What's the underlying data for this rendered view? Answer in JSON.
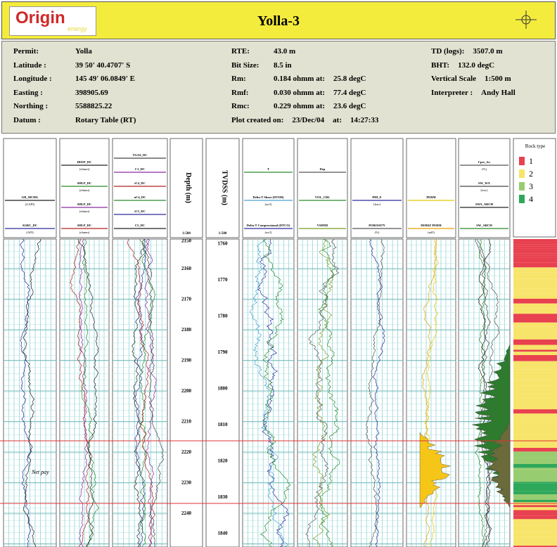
{
  "header": {
    "logo": "Origin",
    "logo_sub": "energy",
    "title": "Yolla-3"
  },
  "info": {
    "columns": [
      [
        [
          "Permit:",
          "Yolla"
        ],
        [
          "Latitude :",
          "39 50' 40.4707' S"
        ],
        [
          "Longitude :",
          "145 49' 06.0849' E"
        ],
        [
          "Easting :",
          "398905.69"
        ],
        [
          "Northing :",
          "5588825.22"
        ],
        [
          "Datum :",
          "Rotary Table (RT)"
        ]
      ],
      [
        [
          "RTE:",
          "43.0 m"
        ],
        [
          "Bit Size:",
          "8.5 in"
        ],
        [
          "Rm:",
          "0.184 ohmm at:",
          "25.8 degC"
        ],
        [
          "Rmf:",
          "0.030 ohmm at:",
          "77.4 degC"
        ],
        [
          "Rmc:",
          "0.229 ohmm at:",
          "23.6 degC"
        ],
        [
          "Plot created on:",
          "23/Dec/04",
          "at:",
          "14:27:33"
        ]
      ],
      [
        [
          "TD (logs):",
          "3507.0 m"
        ],
        [
          "BHT:",
          "132.0 degC"
        ],
        [
          "Vertical Scale",
          "1:500 m"
        ],
        [
          "Interpreter :",
          "Andy Hall"
        ]
      ]
    ]
  },
  "tracks": [
    {
      "curves": [
        {
          "name": "SGRC_DC",
          "unit": "(API)",
          "color": "#2a2a9a"
        },
        {
          "name": "GR_MCHG",
          "unit": "(GAPI)",
          "color": "#222222"
        }
      ]
    },
    {
      "curves": [
        {
          "name": "SHLP_DC",
          "unit": "(ohmm)",
          "color": "#b02020"
        },
        {
          "name": "SHLP_DC",
          "unit": "(ohmm)",
          "color": "#8a2aa0"
        },
        {
          "name": "SHLP_DC",
          "unit": "(ohmm)",
          "color": "#2a8a2a"
        },
        {
          "name": "DEEP_DC",
          "unit": "(ohmm)",
          "color": "#222222"
        }
      ]
    },
    {
      "curves": [
        {
          "name": "C5_DC",
          "unit": "",
          "color": "#222222"
        },
        {
          "name": "iC5_DC",
          "unit": "",
          "color": "#2a2a9a"
        },
        {
          "name": "nC4_DC",
          "unit": "",
          "color": "#2a8a2a"
        },
        {
          "name": "iC4_DC",
          "unit": "",
          "color": "#b02020"
        },
        {
          "name": "C1_DC",
          "unit": "",
          "color": "#8a2aa0"
        },
        {
          "name": "TGAS_DC",
          "unit": "",
          "color": "#444444"
        }
      ]
    },
    {
      "curves": [
        {
          "name": "Delta-T Compressional (DTCO)",
          "unit": "(us/f)",
          "color": "#2a2a9a"
        },
        {
          "name": "Delta-T Shear (DTSM)",
          "unit": "(us/f)",
          "color": "#4aa0d0"
        },
        {
          "name": "T",
          "unit": "",
          "color": "#2a8a2a"
        }
      ]
    },
    {
      "curves": [
        {
          "name": "VSHND",
          "unit": "",
          "color": "#7a9a20"
        },
        {
          "name": "VOL_CRL",
          "unit": "",
          "color": "#2a8a2a"
        },
        {
          "name": "Dep",
          "unit": "",
          "color": "#555555"
        }
      ]
    },
    {
      "curves": [
        {
          "name": "POROSITY",
          "unit": "(%)",
          "color": "#555555"
        },
        {
          "name": "PHI_E",
          "unit": "(frac)",
          "color": "#2a2a9a"
        }
      ]
    },
    {
      "curves": [
        {
          "name": "HORIZ PERM",
          "unit": "(mD)",
          "color": "#e0a000"
        },
        {
          "name": "PERM",
          "unit": "",
          "color": "#e8c800"
        }
      ]
    },
    {
      "curves": [
        {
          "name": "SW_ARCH",
          "unit": "",
          "color": "#2a8a2a"
        },
        {
          "name": "SWS_ARCH",
          "unit": "",
          "color": "#222222"
        },
        {
          "name": "SW_WX",
          "unit": "(frac)",
          "color": "#444444"
        },
        {
          "name": "Cpre_Sw",
          "unit": "(%)",
          "color": "#555555"
        }
      ]
    }
  ],
  "depth_track": {
    "title": "Depth (m)",
    "scale": "1:500",
    "depths": [
      2150,
      2160,
      2170,
      2180,
      2190,
      2200,
      2210,
      2220,
      2230,
      2240
    ]
  },
  "tvdss_track": {
    "title": "TVDSS (m)",
    "scale": "1:500",
    "depths": [
      1760,
      1770,
      1780,
      1790,
      1800,
      1810,
      1820,
      1830,
      1840
    ]
  },
  "annotation": "Net pay",
  "rock_type": {
    "title": "Rock type",
    "classes": [
      {
        "label": "1",
        "color": "#e8414f"
      },
      {
        "label": "2",
        "color": "#f7e46a"
      },
      {
        "label": "3",
        "color": "#98cc70"
      },
      {
        "label": "4",
        "color": "#2ea85a"
      }
    ]
  }
}
